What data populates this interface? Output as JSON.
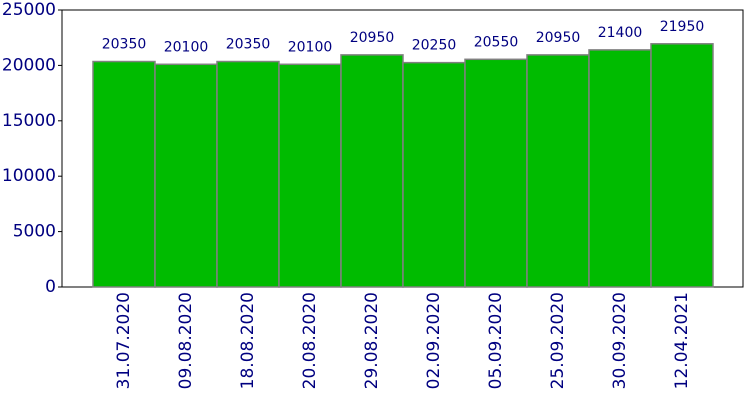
{
  "chart_data": {
    "type": "bar",
    "categories": [
      "31.07.2020",
      "09.08.2020",
      "18.08.2020",
      "20.08.2020",
      "29.08.2020",
      "02.09.2020",
      "05.09.2020",
      "25.09.2020",
      "30.09.2020",
      "12.04.2021"
    ],
    "values": [
      20350,
      20100,
      20350,
      20100,
      20950,
      20250,
      20550,
      20950,
      21400,
      21950
    ],
    "color": "#00bb00",
    "ylim": [
      0,
      25000
    ],
    "yticks": [
      0,
      5000,
      10000,
      15000,
      20000,
      25000
    ]
  }
}
